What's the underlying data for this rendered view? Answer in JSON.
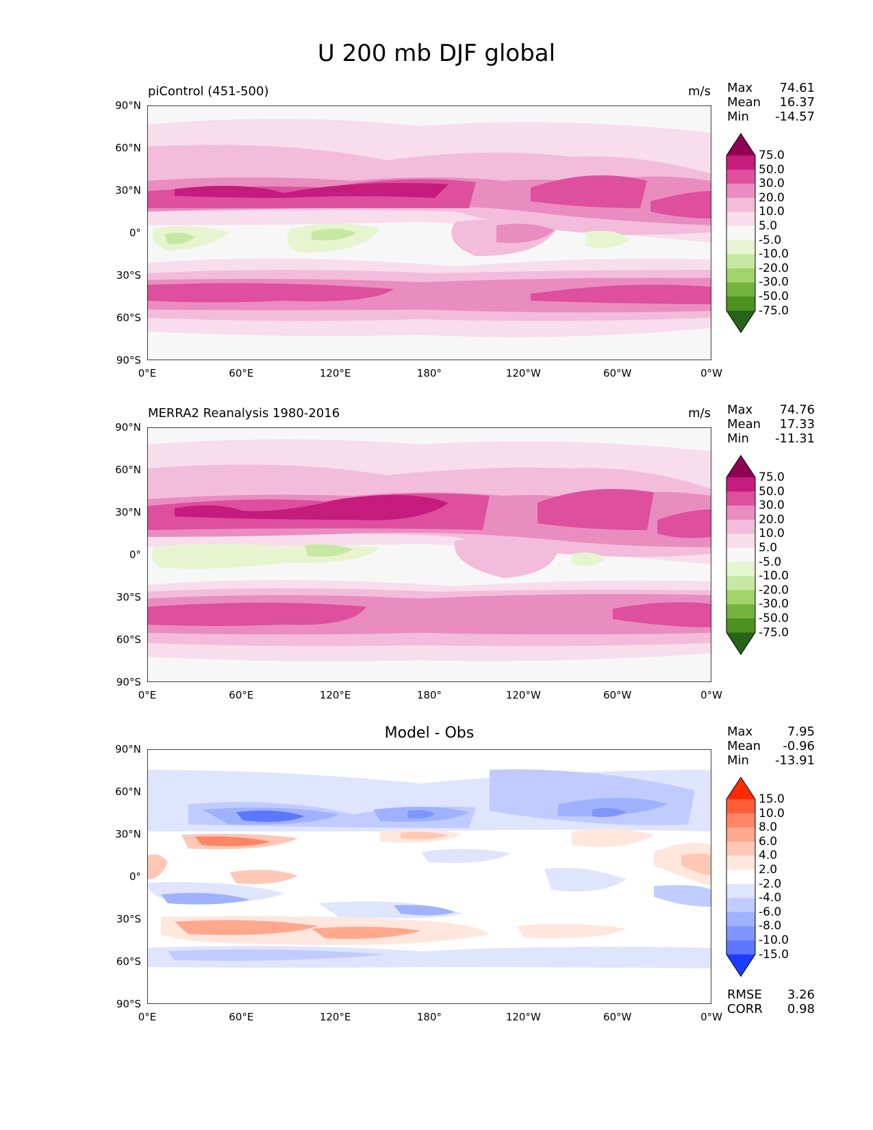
{
  "title": "U 200 mb DJF global",
  "y_ticks": [
    "90°N",
    "60°N",
    "30°N",
    "0°",
    "30°S",
    "60°S",
    "90°S"
  ],
  "x_ticks": [
    "0°E",
    "60°E",
    "120°E",
    "180°",
    "120°W",
    "60°W",
    "0°W"
  ],
  "stat_labels": {
    "max": "Max",
    "mean": "Mean",
    "min": "Min",
    "rmse": "RMSE",
    "corr": "CORR"
  },
  "panels": [
    {
      "label": "piControl (451-500)",
      "units": "m/s",
      "max": "74.61",
      "mean": "16.37",
      "min": "-14.57",
      "colorbar": {
        "labels": [
          "75.0",
          "50.0",
          "30.0",
          "20.0",
          "10.0",
          "5.0",
          "-5.0",
          "-10.0",
          "-20.0",
          "-30.0",
          "-50.0",
          "-75.0"
        ],
        "colors": [
          "#8e0152",
          "#c51b7d",
          "#de4f9d",
          "#e98dc0",
          "#f3bcdb",
          "#f8dded",
          "#f7f7f7",
          "#e6f5d0",
          "#c7e8a3",
          "#a1d46a",
          "#74b43e",
          "#4d9221",
          "#276419"
        ]
      }
    },
    {
      "label": "MERRA2 Reanalysis 1980-2016",
      "units": "m/s",
      "max": "74.76",
      "mean": "17.33",
      "min": "-11.31",
      "colorbar": {
        "labels": [
          "75.0",
          "50.0",
          "30.0",
          "20.0",
          "10.0",
          "5.0",
          "-5.0",
          "-10.0",
          "-20.0",
          "-30.0",
          "-50.0",
          "-75.0"
        ],
        "colors": [
          "#8e0152",
          "#c51b7d",
          "#de4f9d",
          "#e98dc0",
          "#f3bcdb",
          "#f8dded",
          "#f7f7f7",
          "#e6f5d0",
          "#c7e8a3",
          "#a1d46a",
          "#74b43e",
          "#4d9221",
          "#276419"
        ]
      }
    },
    {
      "title": "Model - Obs",
      "max": "7.95",
      "mean": "-0.96",
      "min": "-13.91",
      "rmse": "3.26",
      "corr": "0.98",
      "colorbar": {
        "labels": [
          "15.0",
          "10.0",
          "8.0",
          "6.0",
          "4.0",
          "2.0",
          "-2.0",
          "-4.0",
          "-6.0",
          "-8.0",
          "-10.0",
          "-15.0"
        ],
        "colors": [
          "#ff2a00",
          "#ff5c3a",
          "#ff8566",
          "#ffa88e",
          "#ffc8b6",
          "#ffe7de",
          "#ffffff",
          "#dfe5ff",
          "#c0ccff",
          "#a0b2ff",
          "#7f96ff",
          "#5c78ff",
          "#1a3dff"
        ]
      }
    }
  ]
}
